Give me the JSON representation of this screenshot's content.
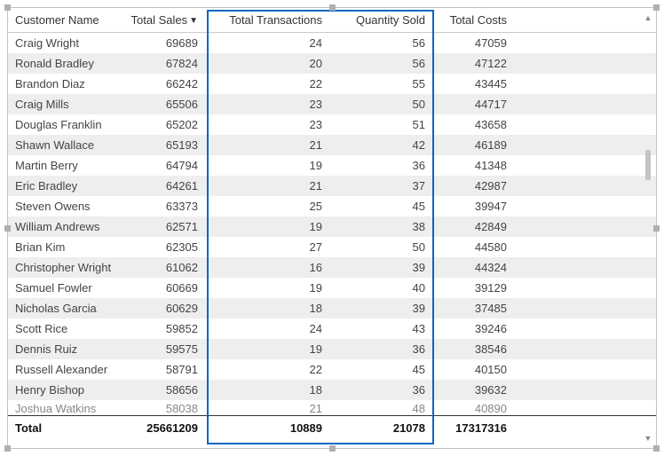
{
  "columns": {
    "customer": "Customer Name",
    "sales": "Total Sales",
    "trans": "Total Transactions",
    "qty": "Quantity Sold",
    "costs": "Total Costs"
  },
  "rows": [
    {
      "name": "Craig Wright",
      "sales": "69689",
      "trans": "24",
      "qty": "56",
      "costs": "47059"
    },
    {
      "name": "Ronald Bradley",
      "sales": "67824",
      "trans": "20",
      "qty": "56",
      "costs": "47122"
    },
    {
      "name": "Brandon Diaz",
      "sales": "66242",
      "trans": "22",
      "qty": "55",
      "costs": "43445"
    },
    {
      "name": "Craig Mills",
      "sales": "65506",
      "trans": "23",
      "qty": "50",
      "costs": "44717"
    },
    {
      "name": "Douglas Franklin",
      "sales": "65202",
      "trans": "23",
      "qty": "51",
      "costs": "43658"
    },
    {
      "name": "Shawn Wallace",
      "sales": "65193",
      "trans": "21",
      "qty": "42",
      "costs": "46189"
    },
    {
      "name": "Martin Berry",
      "sales": "64794",
      "trans": "19",
      "qty": "36",
      "costs": "41348"
    },
    {
      "name": "Eric Bradley",
      "sales": "64261",
      "trans": "21",
      "qty": "37",
      "costs": "42987"
    },
    {
      "name": "Steven Owens",
      "sales": "63373",
      "trans": "25",
      "qty": "45",
      "costs": "39947"
    },
    {
      "name": "William Andrews",
      "sales": "62571",
      "trans": "19",
      "qty": "38",
      "costs": "42849"
    },
    {
      "name": "Brian Kim",
      "sales": "62305",
      "trans": "27",
      "qty": "50",
      "costs": "44580"
    },
    {
      "name": "Christopher Wright",
      "sales": "61062",
      "trans": "16",
      "qty": "39",
      "costs": "44324"
    },
    {
      "name": "Samuel Fowler",
      "sales": "60669",
      "trans": "19",
      "qty": "40",
      "costs": "39129"
    },
    {
      "name": "Nicholas Garcia",
      "sales": "60629",
      "trans": "18",
      "qty": "39",
      "costs": "37485"
    },
    {
      "name": "Scott Rice",
      "sales": "59852",
      "trans": "24",
      "qty": "43",
      "costs": "39246"
    },
    {
      "name": "Dennis Ruiz",
      "sales": "59575",
      "trans": "19",
      "qty": "36",
      "costs": "38546"
    },
    {
      "name": "Russell Alexander",
      "sales": "58791",
      "trans": "22",
      "qty": "45",
      "costs": "40150"
    },
    {
      "name": "Henry Bishop",
      "sales": "58656",
      "trans": "18",
      "qty": "36",
      "costs": "39632"
    },
    {
      "name": "Joshua Watkins",
      "sales": "58038",
      "trans": "21",
      "qty": "48",
      "costs": "40890"
    }
  ],
  "totals": {
    "label": "Total",
    "sales": "25661209",
    "trans": "10889",
    "qty": "21078",
    "costs": "17317316"
  }
}
